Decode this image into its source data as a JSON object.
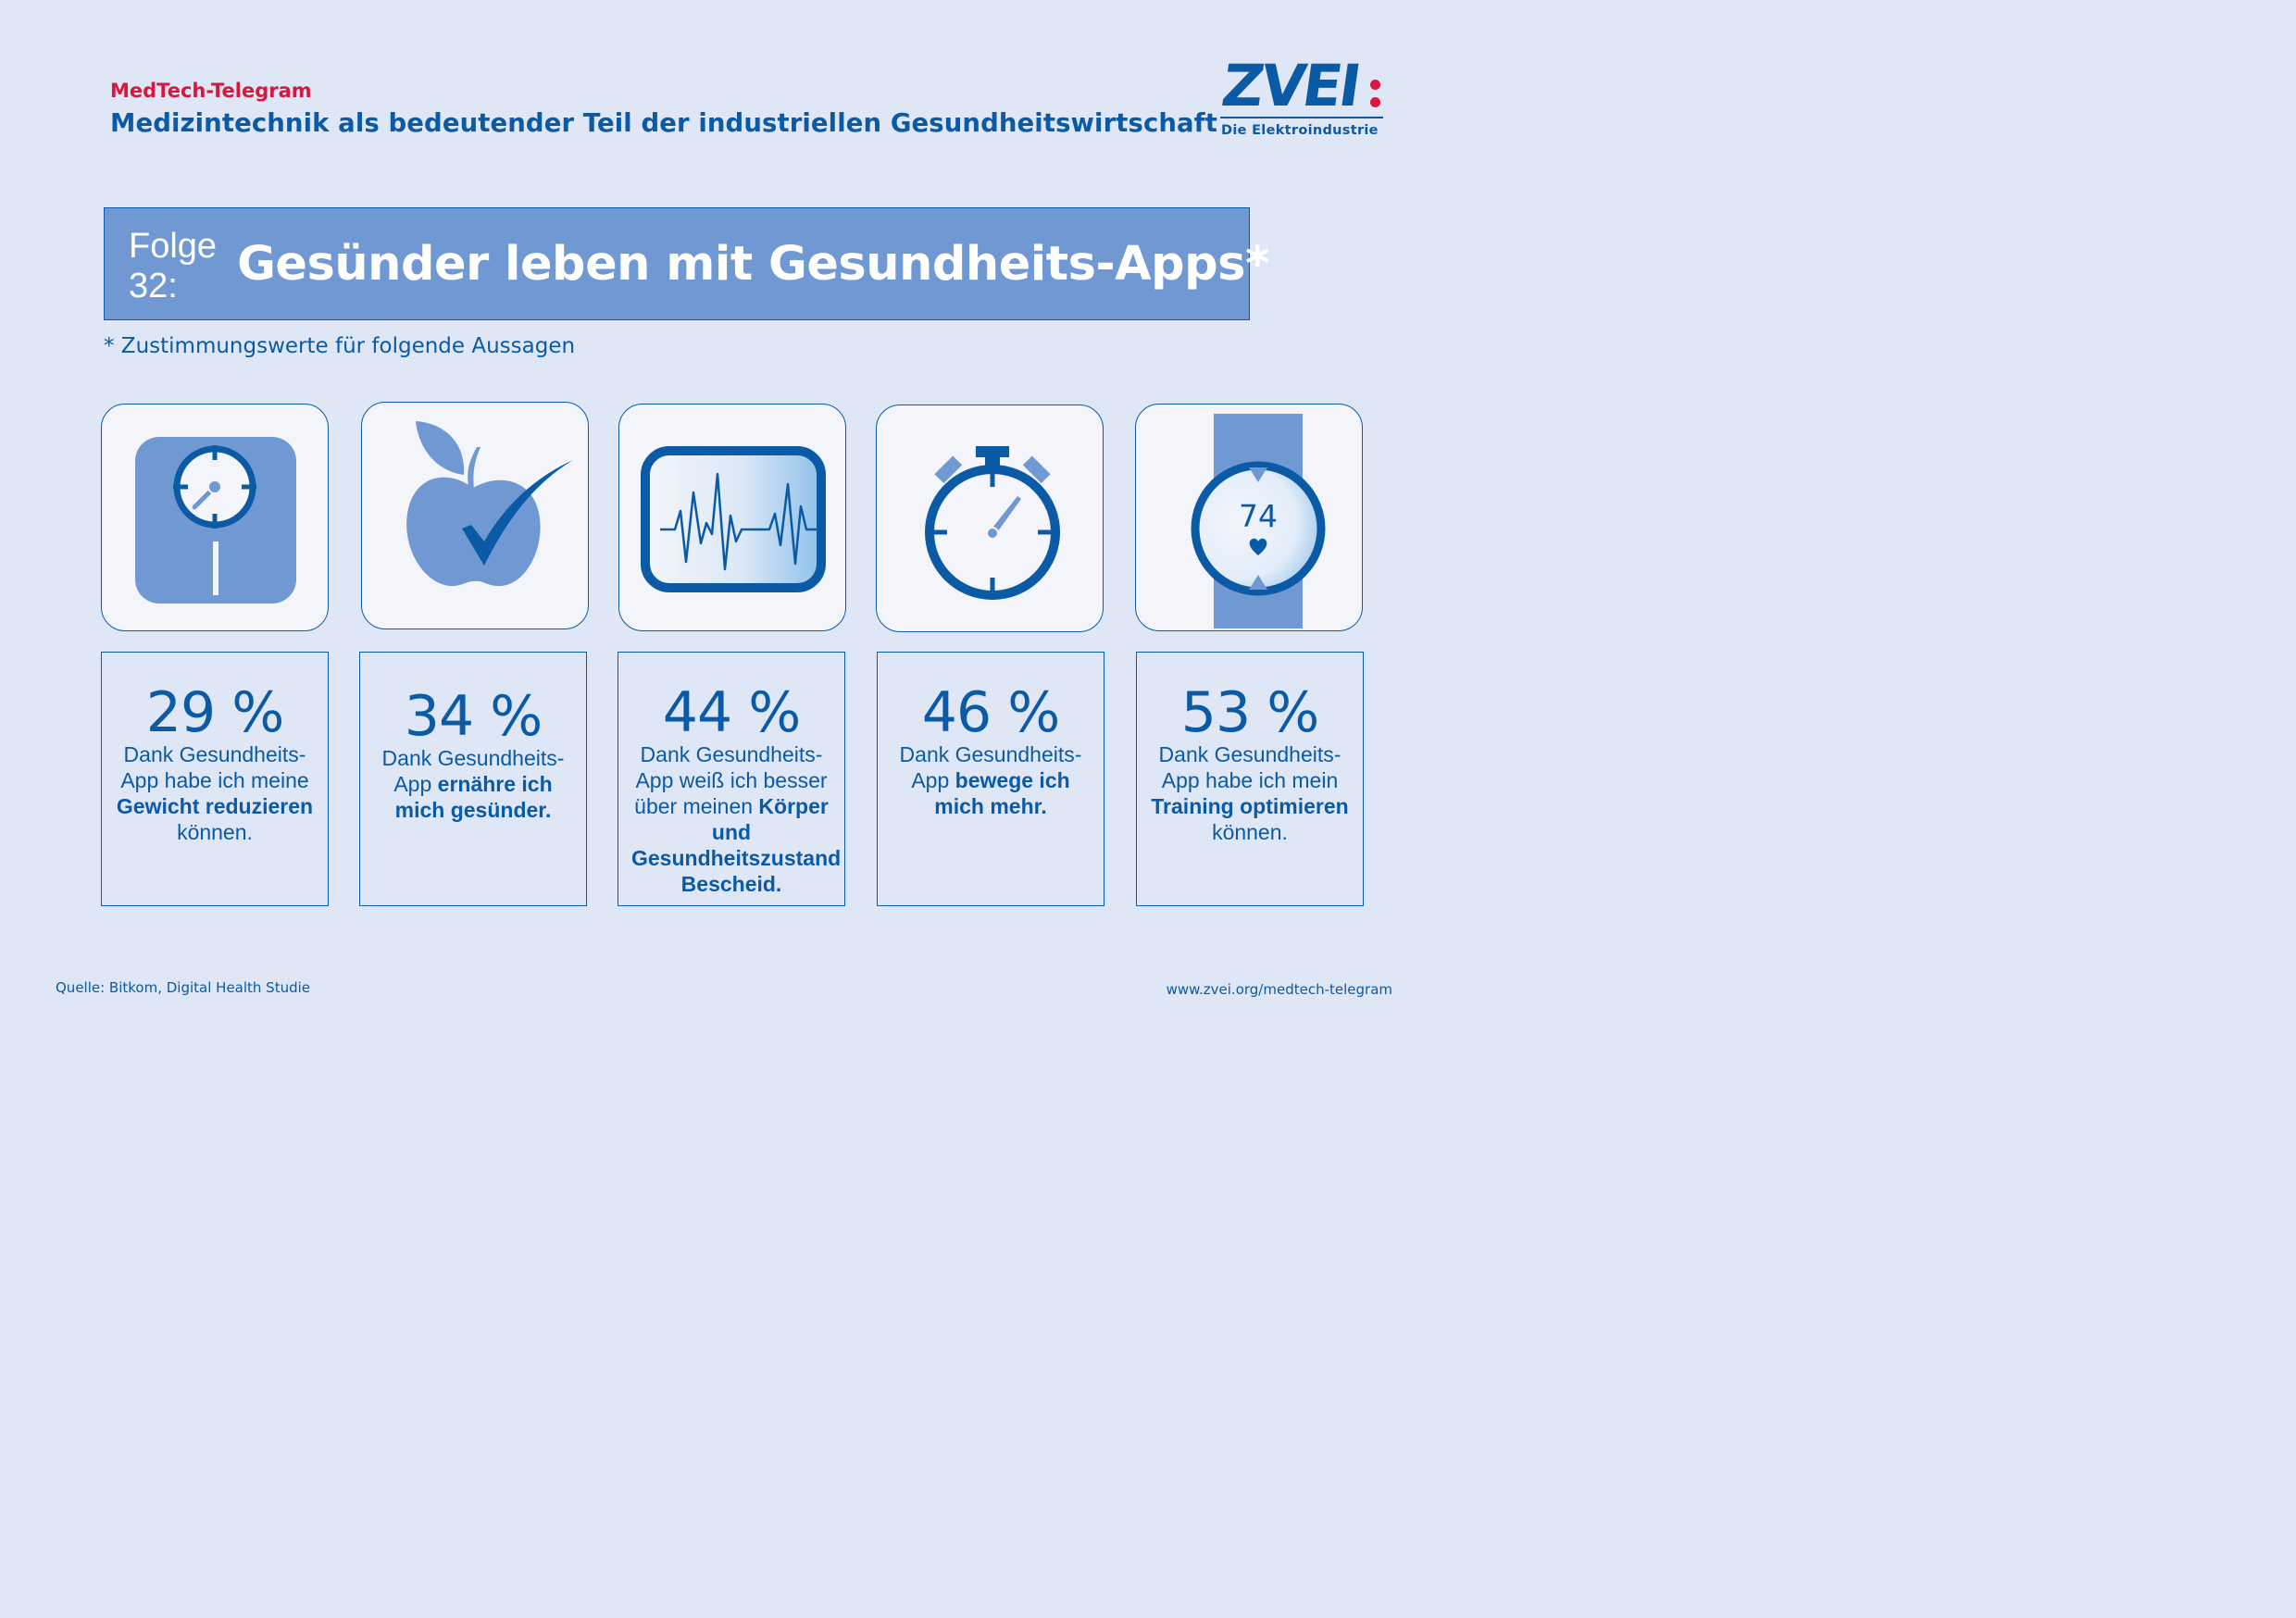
{
  "header": {
    "kicker": "MedTech-Telegram",
    "subtitle": "Medizintechnik als bedeutender Teil der industriellen Gesundheitswirtschaft"
  },
  "logo": {
    "wordmark": "ZVEI",
    "tagline": "Die Elektroindustrie",
    "brand_color": "#0b5aa6",
    "accent_color": "#d8173f"
  },
  "banner": {
    "episode": "Folge 32:",
    "title": "Gesünder leben mit Gesundheits-Apps*"
  },
  "note": "* Zustimmungswerte für folgende Aussagen",
  "stats": [
    {
      "icon": "scale-icon",
      "value": "29 %",
      "text_before": "Dank Gesundheits-App habe ich meine",
      "text_bold": "Gewicht reduzieren",
      "text_after": "können."
    },
    {
      "icon": "apple-check-icon",
      "value": "34 %",
      "text_before": "Dank Gesundheits-App",
      "text_bold": "ernähre ich mich gesünder.",
      "text_after": ""
    },
    {
      "icon": "heart-monitor-icon",
      "value": "44 %",
      "text_before": "Dank Gesundheits-App weiß ich besser über meinen",
      "text_bold": "Körper und Gesundheitszustand Bescheid.",
      "text_after": ""
    },
    {
      "icon": "stopwatch-icon",
      "value": "46 %",
      "text_before": "Dank Gesundheits-App",
      "text_bold": "bewege ich mich mehr.",
      "text_after": ""
    },
    {
      "icon": "smartwatch-icon",
      "value": "53 %",
      "text_before": "Dank Gesundheits-App habe ich mein",
      "text_bold": "Training optimieren",
      "text_after": "können.",
      "watch_reading": "74"
    }
  ],
  "footer": {
    "source": "Quelle: Bitkom, Digital Health Studie",
    "url": "www.zvei.org/medtech-telegram"
  },
  "colors": {
    "background": "#dfe6f5",
    "primary": "#0b5aa6",
    "banner": "#7098d2",
    "tile": "#f3f5fb"
  }
}
